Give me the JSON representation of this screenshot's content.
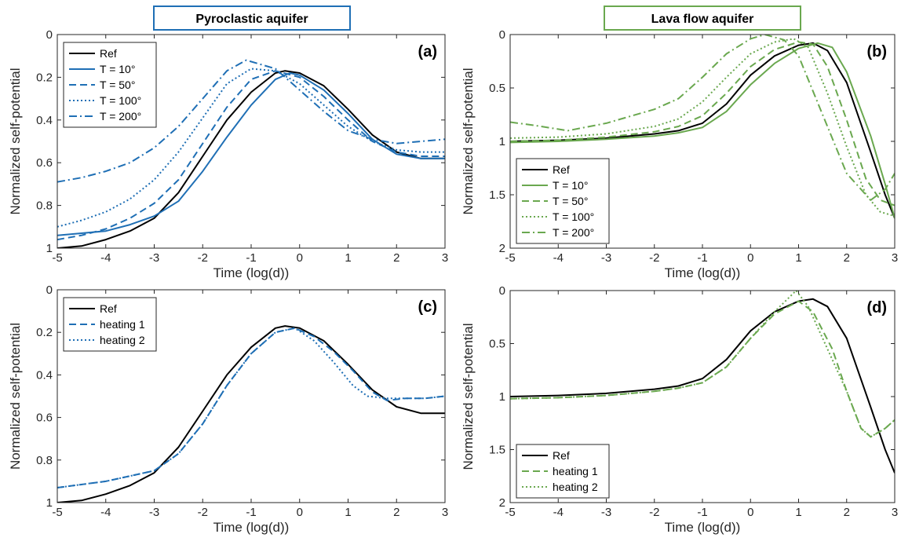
{
  "colors": {
    "ref": "#000000",
    "blue": "#1f6fb5",
    "green": "#6aa84f"
  },
  "headers": [
    {
      "text": "Pyroclastic aquifer",
      "color": "#1f6fb5"
    },
    {
      "text": "Lava flow aquifer",
      "color": "#6aa84f"
    }
  ],
  "chart_data": [
    {
      "type": "line",
      "panel": "(a)",
      "xlabel": "Time (log(d))",
      "ylabel": "Normalized self-potential",
      "xlim": [
        -5,
        3
      ],
      "ylim": [
        0,
        1
      ],
      "y_reversed": true,
      "xticks": [
        -5,
        -4,
        -3,
        -2,
        -1,
        0,
        1,
        2,
        3
      ],
      "yticks": [
        0,
        0.2,
        0.4,
        0.6,
        0.8,
        1
      ],
      "ytick_labels": [
        "0",
        "0.2",
        "0.4",
        "0.6",
        "0.8",
        "1"
      ],
      "legend_position": "top-left",
      "series": [
        {
          "name": "Ref",
          "color": "#000000",
          "dash": "solid",
          "x": [
            -5,
            -4.5,
            -4,
            -3.5,
            -3,
            -2.5,
            -2,
            -1.5,
            -1,
            -0.5,
            -0.3,
            0,
            0.5,
            1,
            1.5,
            2,
            2.5,
            3
          ],
          "y": [
            1.0,
            0.99,
            0.96,
            0.92,
            0.86,
            0.74,
            0.57,
            0.4,
            0.27,
            0.18,
            0.17,
            0.18,
            0.24,
            0.35,
            0.47,
            0.55,
            0.58,
            0.58
          ]
        },
        {
          "name": "T = 10°",
          "color": "#1f6fb5",
          "dash": "solid",
          "x": [
            -5,
            -4.5,
            -4,
            -3.5,
            -3,
            -2.5,
            -2,
            -1.5,
            -1,
            -0.5,
            -0.2,
            0,
            0.5,
            1,
            1.5,
            2,
            2.5,
            3
          ],
          "y": [
            0.94,
            0.93,
            0.92,
            0.89,
            0.85,
            0.78,
            0.64,
            0.48,
            0.33,
            0.21,
            0.18,
            0.19,
            0.26,
            0.37,
            0.49,
            0.56,
            0.58,
            0.58
          ]
        },
        {
          "name": "T = 50°",
          "color": "#1f6fb5",
          "dash": "dashed",
          "x": [
            -5,
            -4.5,
            -4,
            -3.5,
            -3,
            -2.5,
            -2,
            -1.5,
            -1,
            -0.5,
            0,
            0.5,
            1,
            1.5,
            2,
            2.5,
            3
          ],
          "y": [
            0.96,
            0.94,
            0.91,
            0.86,
            0.79,
            0.68,
            0.51,
            0.34,
            0.21,
            0.17,
            0.2,
            0.29,
            0.4,
            0.5,
            0.55,
            0.57,
            0.57
          ]
        },
        {
          "name": "T = 100°",
          "color": "#1f6fb5",
          "dash": "dotted",
          "x": [
            -5,
            -4.5,
            -4,
            -3.5,
            -3,
            -2.5,
            -2,
            -1.5,
            -1,
            -0.5,
            0,
            0.5,
            1,
            1.5,
            2,
            2.5,
            3
          ],
          "y": [
            0.9,
            0.87,
            0.83,
            0.77,
            0.68,
            0.55,
            0.39,
            0.23,
            0.16,
            0.17,
            0.23,
            0.33,
            0.43,
            0.5,
            0.54,
            0.55,
            0.55
          ]
        },
        {
          "name": "T = 200°",
          "color": "#1f6fb5",
          "dash": "dashdot",
          "x": [
            -5,
            -4.5,
            -4,
            -3.5,
            -3,
            -2.5,
            -2,
            -1.5,
            -1.1,
            -0.5,
            0,
            0.5,
            1,
            1.5,
            2,
            2.5,
            3
          ],
          "y": [
            0.69,
            0.67,
            0.64,
            0.6,
            0.53,
            0.43,
            0.3,
            0.17,
            0.12,
            0.16,
            0.26,
            0.36,
            0.45,
            0.49,
            0.51,
            0.5,
            0.49
          ]
        }
      ]
    },
    {
      "type": "line",
      "panel": "(b)",
      "xlabel": "Time (log(d))",
      "ylabel": "Normalized self-potential",
      "xlim": [
        -5,
        3
      ],
      "ylim": [
        0,
        2
      ],
      "y_reversed": true,
      "xticks": [
        -5,
        -4,
        -3,
        -2,
        -1,
        0,
        1,
        2,
        3
      ],
      "yticks": [
        0,
        0.5,
        1,
        1.5,
        2
      ],
      "ytick_labels": [
        "0",
        "0.5",
        "1",
        "1.5",
        "2"
      ],
      "legend_position": "bottom-left",
      "series": [
        {
          "name": "Ref",
          "color": "#000000",
          "dash": "solid",
          "x": [
            -5,
            -4,
            -3,
            -2,
            -1.5,
            -1,
            -0.5,
            0,
            0.5,
            1,
            1.3,
            1.6,
            2,
            2.5,
            2.8,
            3
          ],
          "y": [
            1.0,
            0.99,
            0.97,
            0.93,
            0.9,
            0.83,
            0.65,
            0.38,
            0.2,
            0.1,
            0.08,
            0.15,
            0.45,
            1.1,
            1.5,
            1.72
          ]
        },
        {
          "name": "T = 10°",
          "color": "#6aa84f",
          "dash": "solid",
          "x": [
            -5,
            -4,
            -3,
            -2,
            -1.5,
            -1,
            -0.5,
            0,
            0.5,
            1,
            1.4,
            1.7,
            2,
            2.5,
            2.8,
            3
          ],
          "y": [
            1.01,
            1.0,
            0.98,
            0.95,
            0.92,
            0.87,
            0.72,
            0.47,
            0.27,
            0.13,
            0.08,
            0.12,
            0.35,
            0.95,
            1.4,
            1.72
          ]
        },
        {
          "name": "T = 50°",
          "color": "#6aa84f",
          "dash": "dashed",
          "x": [
            -5,
            -4,
            -3,
            -2,
            -1.5,
            -1,
            -0.5,
            0,
            0.5,
            1,
            1.3,
            1.6,
            2,
            2.4,
            2.7,
            3
          ],
          "y": [
            1.0,
            0.99,
            0.96,
            0.91,
            0.86,
            0.76,
            0.55,
            0.3,
            0.14,
            0.07,
            0.09,
            0.3,
            0.8,
            1.35,
            1.55,
            1.6
          ]
        },
        {
          "name": "T = 100°",
          "color": "#6aa84f",
          "dash": "dotted",
          "x": [
            -5,
            -4,
            -3,
            -2,
            -1.5,
            -1,
            -0.5,
            0,
            0.5,
            0.9,
            1.2,
            1.6,
            2,
            2.4,
            2.7,
            3
          ],
          "y": [
            0.97,
            0.96,
            0.93,
            0.86,
            0.79,
            0.63,
            0.4,
            0.18,
            0.07,
            0.04,
            0.12,
            0.55,
            1.05,
            1.5,
            1.66,
            1.7
          ]
        },
        {
          "name": "T = 200°",
          "color": "#6aa84f",
          "dash": "dashdot",
          "x": [
            -5,
            -4.5,
            -3.8,
            -3,
            -2,
            -1.5,
            -1,
            -0.5,
            0,
            0.3,
            0.7,
            1,
            1.5,
            2,
            2.5,
            2.8,
            3
          ],
          "y": [
            0.82,
            0.85,
            0.9,
            0.83,
            0.7,
            0.6,
            0.4,
            0.18,
            0.04,
            0.0,
            0.05,
            0.2,
            0.75,
            1.3,
            1.55,
            1.45,
            1.3
          ]
        }
      ]
    },
    {
      "type": "line",
      "panel": "(c)",
      "xlabel": "Time (log(d))",
      "ylabel": "Normalized self-potential",
      "xlim": [
        -5,
        3
      ],
      "ylim": [
        0,
        1
      ],
      "y_reversed": true,
      "xticks": [
        -5,
        -4,
        -3,
        -2,
        -1,
        0,
        1,
        2,
        3
      ],
      "yticks": [
        0,
        0.2,
        0.4,
        0.6,
        0.8,
        1
      ],
      "ytick_labels": [
        "0",
        "0.2",
        "0.4",
        "0.6",
        "0.8",
        "1"
      ],
      "legend_position": "top-left",
      "series": [
        {
          "name": "Ref",
          "color": "#000000",
          "dash": "solid",
          "x": [
            -5,
            -4.5,
            -4,
            -3.5,
            -3,
            -2.5,
            -2,
            -1.5,
            -1,
            -0.5,
            -0.3,
            0,
            0.5,
            1,
            1.5,
            2,
            2.5,
            3
          ],
          "y": [
            1.0,
            0.99,
            0.96,
            0.92,
            0.86,
            0.74,
            0.57,
            0.4,
            0.27,
            0.18,
            0.17,
            0.18,
            0.24,
            0.35,
            0.47,
            0.55,
            0.58,
            0.58
          ]
        },
        {
          "name": "heating 1",
          "color": "#1f6fb5",
          "dash": "dashed",
          "x": [
            -5,
            -4,
            -3,
            -2.5,
            -2,
            -1.5,
            -1,
            -0.5,
            -0.1,
            0.3,
            0.7,
            1.1,
            1.5,
            1.8,
            2.2,
            2.6,
            3
          ],
          "y": [
            0.93,
            0.9,
            0.85,
            0.77,
            0.63,
            0.45,
            0.3,
            0.2,
            0.18,
            0.22,
            0.29,
            0.38,
            0.48,
            0.52,
            0.51,
            0.51,
            0.5
          ]
        },
        {
          "name": "heating 2",
          "color": "#1f6fb5",
          "dash": "dotted",
          "x": [
            -5,
            -4,
            -3,
            -2.5,
            -2,
            -1.5,
            -1,
            -0.5,
            -0.1,
            0.3,
            0.7,
            1.1,
            1.4,
            1.8,
            2.2,
            2.6,
            3
          ],
          "y": [
            0.93,
            0.9,
            0.85,
            0.77,
            0.63,
            0.45,
            0.3,
            0.2,
            0.18,
            0.24,
            0.34,
            0.45,
            0.5,
            0.51,
            0.51,
            0.51,
            0.5
          ]
        }
      ]
    },
    {
      "type": "line",
      "panel": "(d)",
      "xlabel": "Time (log(d))",
      "ylabel": "Normalized self-potential",
      "xlim": [
        -5,
        3
      ],
      "ylim": [
        0,
        2
      ],
      "y_reversed": true,
      "xticks": [
        -5,
        -4,
        -3,
        -2,
        -1,
        0,
        1,
        2,
        3
      ],
      "yticks": [
        0,
        0.5,
        1,
        1.5,
        2
      ],
      "ytick_labels": [
        "0",
        "0.5",
        "1",
        "1.5",
        "2"
      ],
      "legend_position": "bottom-left",
      "series": [
        {
          "name": "Ref",
          "color": "#000000",
          "dash": "solid",
          "x": [
            -5,
            -4,
            -3,
            -2,
            -1.5,
            -1,
            -0.5,
            0,
            0.5,
            1,
            1.3,
            1.6,
            2,
            2.5,
            2.8,
            3
          ],
          "y": [
            1.0,
            0.99,
            0.97,
            0.93,
            0.9,
            0.83,
            0.65,
            0.38,
            0.2,
            0.1,
            0.08,
            0.15,
            0.45,
            1.1,
            1.5,
            1.72
          ]
        },
        {
          "name": "heating 1",
          "color": "#6aa84f",
          "dash": "dashed",
          "x": [
            -5,
            -4,
            -3,
            -2,
            -1.5,
            -1,
            -0.5,
            0,
            0.5,
            1,
            1.3,
            1.7,
            2,
            2.3,
            2.5,
            2.8,
            3
          ],
          "y": [
            1.02,
            1.01,
            0.99,
            0.95,
            0.92,
            0.87,
            0.72,
            0.45,
            0.22,
            0.1,
            0.2,
            0.55,
            0.95,
            1.3,
            1.38,
            1.3,
            1.22
          ]
        },
        {
          "name": "heating 2",
          "color": "#6aa84f",
          "dash": "dotted",
          "x": [
            -5,
            -4,
            -3,
            -2,
            -1.5,
            -1,
            -0.5,
            0,
            0.5,
            0.95,
            1.2,
            1.6,
            2,
            2.3,
            2.5,
            2.8,
            3
          ],
          "y": [
            1.02,
            1.01,
            0.99,
            0.95,
            0.92,
            0.87,
            0.72,
            0.45,
            0.2,
            0.0,
            0.15,
            0.55,
            0.95,
            1.3,
            1.38,
            1.3,
            1.22
          ]
        }
      ]
    }
  ]
}
